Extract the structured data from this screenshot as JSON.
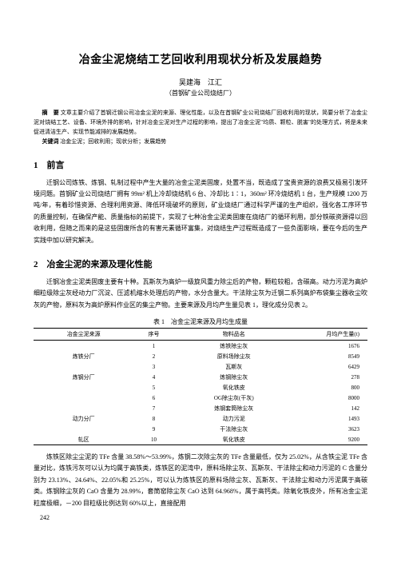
{
  "title": "冶金尘泥烧结工艺回收利用现状分析及发展趋势",
  "authors": "吴建海　江汇",
  "affiliation": "（首钢矿业公司烧结厂）",
  "abstract": {
    "label": "摘　要",
    "text": "文章主要介绍了首钢迁钢公司冶金尘泥的来源、理化性能，以及在首钢矿业公司烧结厂回收利用的现状，简要分析了冶金尘泥对烧结工艺、设备、环境外排的影响，针对冶金尘泥对生产过程的影响，提出了冶金尘泥\"均质、颗粒、脱害\"的处理方式，将是未来促进清洁生产、实现节能减排的发展趋势。"
  },
  "keywords": {
    "label": "关键词",
    "text": "冶金尘泥；回收利用；现状分析；发展趋势"
  },
  "sections": {
    "s1": {
      "heading": "1　前言",
      "p1": "迁钢公司炼铁、炼钢、轧制过程中产生大量的冶金尘泥类固废，处置不当，既造成了宝贵资源的浪费又极易引发环境问题。首钢矿业公司烧结厂拥有 99m² 机上冷却烧结机 6 台、冷却比 1∶1，360m² 环冷烧结机 1 台，生产规模 1200 万吨/年，有着珍惜资源、合理利用资源、降低环境破坏的原则，矿业烧结厂通过科学严谨的生产组织，强化各工序环节的质量控制，在确保产能、质量指标的前提下，实现了七种冶金尘泥类固废在烧结厂的循环利用，部分铁碳资源得以回收利用，但随之而来的是这些固废所含的有害元素循环富集，对烧结生产过程既造成了一些负面影响，要在今后的生产实践中加以研究解决。"
    },
    "s2": {
      "heading": "2　冶金尘泥的来源及理化性能",
      "p1": "迁钢冶金尘泥类固废主要有十种。瓦斯灰为高炉一级旋风重力除尘后的产物，颗粒较粗，含碳高。动力污泥为高炉细粒级除尘灰经动力厂沉淀、压滤机缩水处理后的产物，水分含量大。干法除尘灰为迁钢二系列高炉布袋集尘器收尘吹灰的产物，原料灰为高炉原料作业区的集尘产物。主要来源及月均产生量见表 1，理化成分见表 2。"
    }
  },
  "table1": {
    "caption": "表 1　冶金尘泥来源及月均生成量",
    "headers": {
      "source": "冶金尘泥来源",
      "idx": "序号",
      "material": "物料品名",
      "output": "月均产生量(t)"
    },
    "rows": [
      {
        "source": "",
        "idx": "1",
        "material": "炼铁除尘灰",
        "output": "1676"
      },
      {
        "source": "炼铁分厂",
        "idx": "2",
        "material": "原料场除尘灰",
        "output": "8549"
      },
      {
        "source": "",
        "idx": "3",
        "material": "瓦斯灰",
        "output": "6429"
      },
      {
        "source": "炼钢分厂",
        "idx": "4",
        "material": "炼钢除尘灰",
        "output": "278"
      },
      {
        "source": "",
        "idx": "5",
        "material": "氧化铁皮",
        "output": "800"
      },
      {
        "source": "",
        "idx": "6",
        "material": "OG除尘灰(干灰)",
        "output": "8000"
      },
      {
        "source": "",
        "idx": "7",
        "material": "炼钢套筒除尘灰",
        "output": "142"
      },
      {
        "source": "动力分厂",
        "idx": "8",
        "material": "动力污泥",
        "output": "1493"
      },
      {
        "source": "",
        "idx": "9",
        "material": "干法除尘灰",
        "output": "3623"
      },
      {
        "source": "轧区",
        "idx": "10",
        "material": "氧化铁皮",
        "output": "9200"
      }
    ]
  },
  "tail_para": "炼铁区除尘尘泥的 TFe 含量 38.58%～53.99%，炼钢二次除尘灰的 TFe 含量最低，仅为 25.02%，从含铁尘泥 TFe 含量对比，炼铁污灰可以认为均属于高铁类，炼铁区的泥湾中，原料场除尘灰、瓦斯灰、干法除尘和动力污泥的 C 含量分别为 23.13%、24.64%、22.05%和 25.25%，可以认为炼铁区的原料场除尘灰、瓦斯灰、干法除尘和动力污泥属于高碳类。炼钢除尘灰的 CaO 含量为 28.99%，套筒窑除尘灰 CaO 达到 64.968%，属于高钙类。除氧化铁皮外，所有冶金尘泥粒度极细，－200 目粒级比例达到 60%以上，直接配用",
  "page_number": "242"
}
